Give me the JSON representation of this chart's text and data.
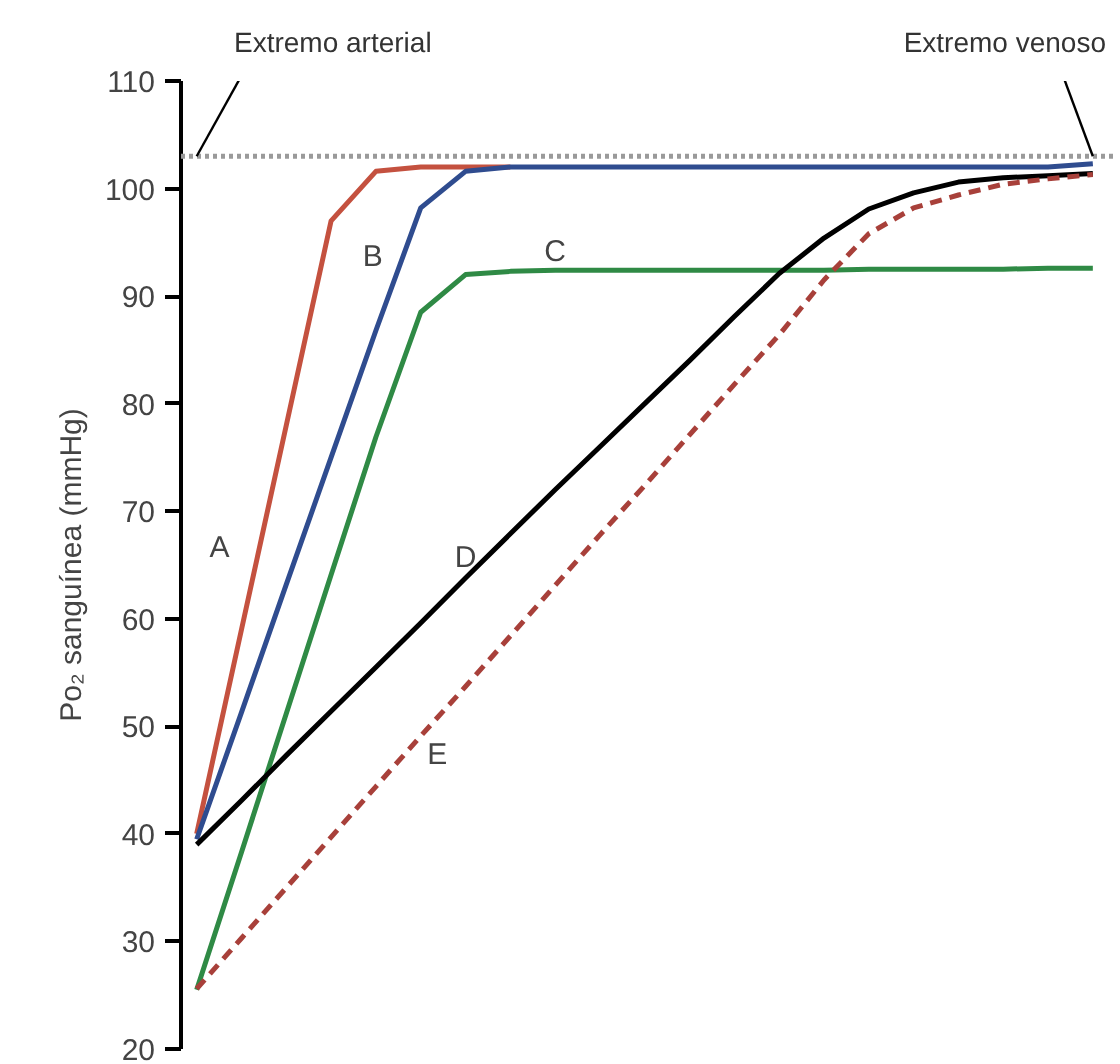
{
  "chart_data": {
    "type": "line",
    "ylabel": "Po₂ sanguínea (mmHg)",
    "categories": [
      null,
      null,
      null,
      null,
      null,
      null,
      null,
      null,
      null,
      null,
      null,
      null,
      null,
      null,
      null,
      null,
      null,
      null,
      null,
      null,
      null
    ],
    "ylim": [
      20,
      110
    ],
    "yticks": [
      20,
      30,
      40,
      50,
      60,
      70,
      80,
      90,
      100,
      110
    ],
    "tick_labels": "y",
    "grid": false,
    "marker": "none",
    "series": [
      {
        "name": "A",
        "color": "#c4513f",
        "line_style": "solid",
        "values": [
          40,
          59,
          78,
          97,
          101.6,
          102,
          102,
          102,
          null,
          null,
          null,
          null,
          null,
          null,
          null,
          null,
          null,
          null,
          null,
          null,
          null
        ]
      },
      {
        "name": "B",
        "color": "#2f4c8f",
        "line_style": "solid",
        "values": [
          39.5,
          51.3,
          63.2,
          75,
          86.8,
          98.2,
          101.6,
          102,
          102,
          102,
          102,
          102,
          102,
          102,
          102,
          102,
          102,
          102,
          102,
          102,
          102.3
        ]
      },
      {
        "name": "C",
        "color": "#2f8a45",
        "line_style": "solid",
        "values": [
          25.5,
          38.3,
          51.2,
          64.1,
          76.9,
          88.5,
          92,
          92.3,
          92.4,
          92.4,
          92.4,
          92.4,
          92.4,
          92.4,
          92.4,
          92.5,
          92.5,
          92.5,
          92.5,
          92.6,
          92.6
        ]
      },
      {
        "name": "D",
        "color": "#000000",
        "line_style": "solid",
        "values": [
          39,
          43.1,
          47.3,
          51.4,
          55.5,
          59.6,
          63.8,
          67.9,
          72,
          76,
          80,
          84,
          88.1,
          92.1,
          95.4,
          98.1,
          99.6,
          100.6,
          101,
          101.2,
          101.4
        ]
      },
      {
        "name": "E",
        "color": "#a8403a",
        "line_style": "dashed",
        "values": [
          25.6,
          30.3,
          35,
          39.7,
          44.4,
          49.1,
          53.7,
          58.4,
          63.1,
          67.8,
          72.4,
          77.1,
          81.8,
          86.4,
          91.5,
          95.8,
          98.2,
          99.4,
          100.4,
          100.9,
          101.3
        ]
      }
    ],
    "ref_lines": [
      {
        "axis": "y",
        "value": 103,
        "color": "#9a9a9a",
        "line_style": "dotted"
      }
    ],
    "annotations": [
      "Extremo arterial",
      "Extremo venoso"
    ]
  }
}
